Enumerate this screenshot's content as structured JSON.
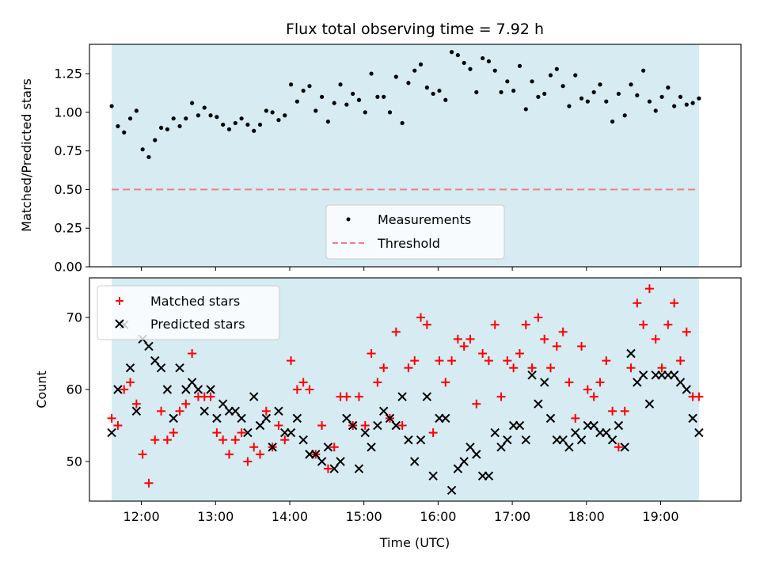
{
  "chart_data": [
    {
      "type": "scatter",
      "title": "Flux total observing time = 7.92 h",
      "xlabel": "",
      "ylabel": "Matched/Predicted stars",
      "xlim": [
        "11:18",
        "20:05"
      ],
      "ylim": [
        0,
        1.44
      ],
      "yticks": [
        "0.00",
        "0.25",
        "0.50",
        "0.75",
        "1.00",
        "1.25"
      ],
      "grid": false,
      "legend_position": "lower-center",
      "colors": {
        "measurements": "#000000",
        "threshold": "#f08080",
        "observing_span": "#add8e6"
      },
      "observing_span": [
        "11:36",
        "19:31"
      ],
      "threshold": {
        "name": "Threshold",
        "value": 0.5
      },
      "series": [
        {
          "name": "Measurements",
          "x": [
            "11:36",
            "11:41",
            "11:46",
            "11:51",
            "11:56",
            "12:01",
            "12:06",
            "12:11",
            "12:16",
            "12:21",
            "12:26",
            "12:31",
            "12:36",
            "12:41",
            "12:46",
            "12:51",
            "12:56",
            "13:01",
            "13:06",
            "13:11",
            "13:16",
            "13:21",
            "13:26",
            "13:31",
            "13:36",
            "13:41",
            "13:46",
            "13:51",
            "13:56",
            "14:01",
            "14:06",
            "14:11",
            "14:16",
            "14:21",
            "14:26",
            "14:31",
            "14:36",
            "14:41",
            "14:46",
            "14:51",
            "14:56",
            "15:01",
            "15:06",
            "15:11",
            "15:16",
            "15:21",
            "15:26",
            "15:31",
            "15:36",
            "15:41",
            "15:46",
            "15:51",
            "15:56",
            "16:01",
            "16:06",
            "16:11",
            "16:16",
            "16:21",
            "16:26",
            "16:31",
            "16:36",
            "16:41",
            "16:46",
            "16:51",
            "16:56",
            "17:01",
            "17:06",
            "17:11",
            "17:16",
            "17:21",
            "17:26",
            "17:31",
            "17:36",
            "17:41",
            "17:46",
            "17:51",
            "17:56",
            "18:01",
            "18:06",
            "18:11",
            "18:16",
            "18:21",
            "18:26",
            "18:31",
            "18:36",
            "18:41",
            "18:46",
            "18:51",
            "18:56",
            "19:01",
            "19:06",
            "19:11",
            "19:16",
            "19:21",
            "19:26",
            "19:31"
          ],
          "y": [
            1.04,
            0.91,
            0.87,
            0.96,
            1.01,
            0.76,
            0.71,
            0.82,
            0.9,
            0.89,
            0.96,
            0.91,
            0.96,
            1.06,
            0.98,
            1.03,
            0.98,
            0.97,
            0.92,
            0.89,
            0.93,
            0.96,
            0.92,
            0.88,
            0.92,
            1.01,
            1.0,
            0.95,
            0.98,
            1.18,
            1.07,
            1.14,
            1.17,
            1.01,
            1.1,
            0.94,
            1.06,
            1.18,
            1.05,
            1.12,
            1.08,
            1.0,
            1.25,
            1.1,
            1.1,
            1.0,
            1.23,
            0.93,
            1.19,
            1.27,
            1.31,
            1.16,
            1.12,
            1.14,
            1.08,
            1.39,
            1.37,
            1.32,
            1.28,
            1.13,
            1.35,
            1.33,
            1.27,
            1.13,
            1.2,
            1.14,
            1.3,
            1.02,
            1.2,
            1.1,
            1.12,
            1.24,
            1.28,
            1.17,
            1.04,
            1.24,
            1.09,
            1.07,
            1.13,
            1.18,
            1.07,
            0.94,
            1.12,
            0.98,
            1.18,
            1.11,
            1.27,
            1.07,
            1.01,
            1.1,
            1.16,
            1.04,
            1.1,
            1.05,
            1.06,
            1.09
          ]
        }
      ]
    },
    {
      "type": "scatter",
      "title": "",
      "xlabel": "Time (UTC)",
      "ylabel": "Count",
      "xlim": [
        "11:18",
        "20:05"
      ],
      "ylim": [
        44.5,
        75.5
      ],
      "xticks": [
        "12:00",
        "13:00",
        "14:00",
        "15:00",
        "16:00",
        "17:00",
        "18:00",
        "19:00"
      ],
      "yticks": [
        "50",
        "60",
        "70"
      ],
      "grid": false,
      "legend_position": "upper-left",
      "colors": {
        "matched": "#ff0000",
        "predicted": "#000000",
        "observing_span": "#add8e6"
      },
      "observing_span": [
        "11:36",
        "19:31"
      ],
      "series": [
        {
          "name": "Matched stars",
          "marker": "plus",
          "x": [
            "11:36",
            "11:41",
            "11:46",
            "11:51",
            "11:56",
            "12:01",
            "12:06",
            "12:11",
            "12:16",
            "12:21",
            "12:26",
            "12:31",
            "12:36",
            "12:41",
            "12:46",
            "12:51",
            "12:56",
            "13:01",
            "13:06",
            "13:11",
            "13:16",
            "13:21",
            "13:26",
            "13:31",
            "13:36",
            "13:41",
            "13:46",
            "13:51",
            "13:56",
            "14:01",
            "14:06",
            "14:11",
            "14:16",
            "14:21",
            "14:26",
            "14:31",
            "14:36",
            "14:41",
            "14:46",
            "14:51",
            "14:56",
            "15:01",
            "15:06",
            "15:11",
            "15:16",
            "15:21",
            "15:26",
            "15:31",
            "15:36",
            "15:41",
            "15:46",
            "15:51",
            "15:56",
            "16:01",
            "16:06",
            "16:11",
            "16:16",
            "16:21",
            "16:26",
            "16:31",
            "16:36",
            "16:41",
            "16:46",
            "16:51",
            "16:56",
            "17:01",
            "17:06",
            "17:11",
            "17:16",
            "17:21",
            "17:26",
            "17:31",
            "17:36",
            "17:41",
            "17:46",
            "17:51",
            "17:56",
            "18:01",
            "18:06",
            "18:11",
            "18:16",
            "18:21",
            "18:26",
            "18:31",
            "18:36",
            "18:41",
            "18:46",
            "18:51",
            "18:56",
            "19:01",
            "19:06",
            "19:11",
            "19:16",
            "19:21",
            "19:26",
            "19:31"
          ],
          "y": [
            56,
            55,
            60,
            61,
            58,
            51,
            47,
            53,
            57,
            53,
            54,
            57,
            58,
            65,
            59,
            59,
            59,
            54,
            53,
            51,
            53,
            54,
            50,
            52,
            51,
            57,
            52,
            55,
            53,
            64,
            60,
            61,
            60,
            51,
            55,
            49,
            52,
            59,
            59,
            55,
            59,
            55,
            65,
            61,
            63,
            56,
            68,
            55,
            63,
            64,
            70,
            69,
            54,
            64,
            61,
            64,
            67,
            66,
            67,
            58,
            65,
            64,
            69,
            59,
            64,
            63,
            65,
            69,
            63,
            70,
            67,
            63,
            66,
            68,
            61,
            56,
            66,
            60,
            59,
            61,
            64,
            57,
            52,
            57,
            63,
            72,
            69,
            74,
            67,
            63,
            69,
            72,
            64,
            68,
            59,
            59
          ]
        },
        {
          "name": "Predicted stars",
          "marker": "x",
          "x": [
            "11:36",
            "11:41",
            "11:46",
            "11:51",
            "11:56",
            "12:01",
            "12:06",
            "12:11",
            "12:16",
            "12:21",
            "12:26",
            "12:31",
            "12:36",
            "12:41",
            "12:46",
            "12:51",
            "12:56",
            "13:01",
            "13:06",
            "13:11",
            "13:16",
            "13:21",
            "13:26",
            "13:31",
            "13:36",
            "13:41",
            "13:46",
            "13:51",
            "13:56",
            "14:01",
            "14:06",
            "14:11",
            "14:16",
            "14:21",
            "14:26",
            "14:31",
            "14:36",
            "14:41",
            "14:46",
            "14:51",
            "14:56",
            "15:01",
            "15:06",
            "15:11",
            "15:16",
            "15:21",
            "15:26",
            "15:31",
            "15:36",
            "15:41",
            "15:46",
            "15:51",
            "15:56",
            "16:01",
            "16:06",
            "16:11",
            "16:16",
            "16:21",
            "16:26",
            "16:31",
            "16:36",
            "16:41",
            "16:46",
            "16:51",
            "16:56",
            "17:01",
            "17:06",
            "17:11",
            "17:16",
            "17:21",
            "17:26",
            "17:31",
            "17:36",
            "17:41",
            "17:46",
            "17:51",
            "17:56",
            "18:01",
            "18:06",
            "18:11",
            "18:16",
            "18:21",
            "18:26",
            "18:31",
            "18:36",
            "18:41",
            "18:46",
            "18:51",
            "18:56",
            "19:01",
            "19:06",
            "19:11",
            "19:16",
            "19:21",
            "19:26",
            "19:31"
          ],
          "y": [
            54,
            60,
            69,
            63,
            57,
            67,
            66,
            64,
            63,
            60,
            56,
            63,
            60,
            61,
            60,
            57,
            60,
            56,
            58,
            57,
            57,
            56,
            54,
            59,
            55,
            56,
            52,
            57,
            54,
            54,
            56,
            53,
            51,
            51,
            50,
            52,
            49,
            50,
            56,
            55,
            49,
            54,
            52,
            55,
            57,
            56,
            55,
            59,
            53,
            50,
            53,
            59,
            48,
            56,
            56,
            46,
            49,
            50,
            52,
            51,
            48,
            48,
            54,
            52,
            53,
            55,
            55,
            53,
            62,
            58,
            61,
            56,
            53,
            53,
            52,
            54,
            53,
            55,
            55,
            54,
            54,
            53,
            55,
            52,
            65,
            61,
            62,
            58,
            62,
            62,
            62,
            62,
            61,
            60,
            56,
            54
          ]
        }
      ]
    }
  ]
}
